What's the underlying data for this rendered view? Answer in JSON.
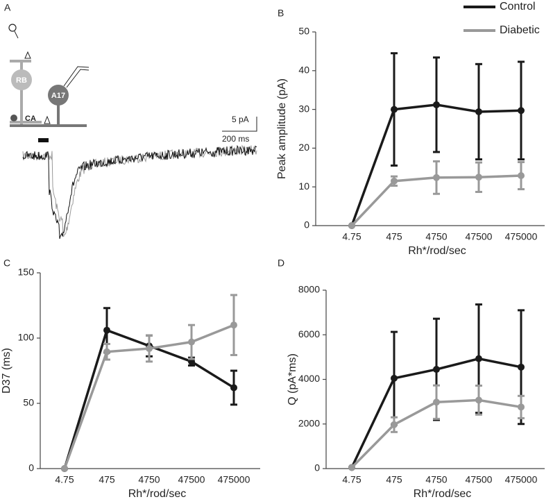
{
  "panel_a": {
    "label": "A",
    "cell_1": "RB",
    "cell_2": "A17",
    "synapse": "CA",
    "scale_y": "5 pA",
    "scale_x": "200 ms"
  },
  "chart_data": [
    {
      "type": "line",
      "panel": "B",
      "categories": [
        "4.75",
        "475",
        "4750",
        "47500",
        "475000"
      ],
      "xlabel": "Rh*/rod/sec",
      "ylabel": "Peak amplitude (pA)",
      "ylim": [
        0,
        50
      ],
      "yticks": [
        0,
        10,
        20,
        30,
        40,
        50
      ],
      "legend": "top-right",
      "series": [
        {
          "name": "Control",
          "color": "#1a1a1a",
          "values": [
            0,
            30,
            31.2,
            29.4,
            29.7
          ],
          "errors": [
            0,
            14.5,
            12.2,
            12.3,
            12.6
          ]
        },
        {
          "name": "Diabetic",
          "color": "#999999",
          "values": [
            0,
            11.5,
            12.4,
            12.5,
            12.9
          ],
          "errors": [
            0,
            1.2,
            4.2,
            3.8,
            3.5
          ]
        }
      ]
    },
    {
      "type": "line",
      "panel": "C",
      "categories": [
        "4.75",
        "475",
        "4750",
        "47500",
        "475000"
      ],
      "xlabel": "Rh*/rod/sec",
      "ylabel": "D37 (ms)",
      "ylim": [
        0,
        150
      ],
      "yticks": [
        0,
        50,
        100,
        150
      ],
      "series": [
        {
          "color": "#1a1a1a",
          "values": [
            0,
            106,
            94,
            82,
            62
          ],
          "errors": [
            0,
            17,
            8,
            3,
            13
          ]
        },
        {
          "color": "#999999",
          "values": [
            0,
            89.5,
            92,
            97,
            110
          ],
          "errors": [
            0,
            6,
            10,
            13,
            23
          ]
        }
      ]
    },
    {
      "type": "line",
      "panel": "D",
      "categories": [
        "4.75",
        "475",
        "4750",
        "47500",
        "475000"
      ],
      "xlabel": "Rh*/rod/sec",
      "ylabel": "Q (pA*ms)",
      "ylim": [
        0,
        8000
      ],
      "yticks": [
        0,
        2000,
        4000,
        6000,
        8000
      ],
      "series": [
        {
          "color": "#1a1a1a",
          "values": [
            50,
            4050,
            4450,
            4930,
            4550
          ],
          "errors": [
            0,
            2080,
            2270,
            2430,
            2550
          ]
        },
        {
          "color": "#999999",
          "values": [
            50,
            1970,
            2980,
            3070,
            2760
          ],
          "errors": [
            0,
            330,
            750,
            650,
            500
          ]
        }
      ]
    }
  ]
}
